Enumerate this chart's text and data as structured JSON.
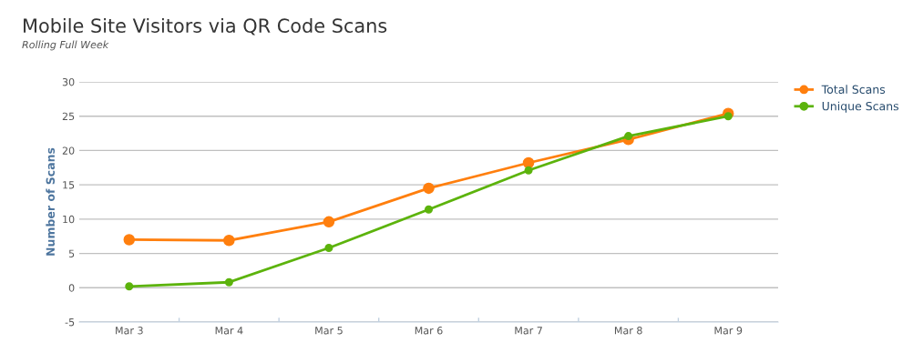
{
  "chart_data": {
    "type": "line",
    "title": "Mobile Site Visitors via QR Code Scans",
    "subtitle": "Rolling Full Week",
    "ylabel": "Number of Scans",
    "categories": [
      "Mar 3",
      "Mar 4",
      "Mar 5",
      "Mar 6",
      "Mar 7",
      "Mar 8",
      "Mar 9"
    ],
    "series": [
      {
        "name": "Total Scans",
        "color": "#ff7f0e",
        "values": [
          7.0,
          6.9,
          9.6,
          14.5,
          18.2,
          21.6,
          25.4
        ]
      },
      {
        "name": "Unique Scans",
        "color": "#5cb30c",
        "values": [
          0.2,
          0.8,
          5.8,
          11.4,
          17.1,
          22.1,
          25.0
        ]
      }
    ],
    "ylim": [
      -5,
      30
    ],
    "yticks": [
      -5,
      0,
      5,
      10,
      15,
      20,
      25,
      30
    ],
    "grid": "y",
    "legend": "top right",
    "marker": "circle",
    "line_style": "solid"
  }
}
